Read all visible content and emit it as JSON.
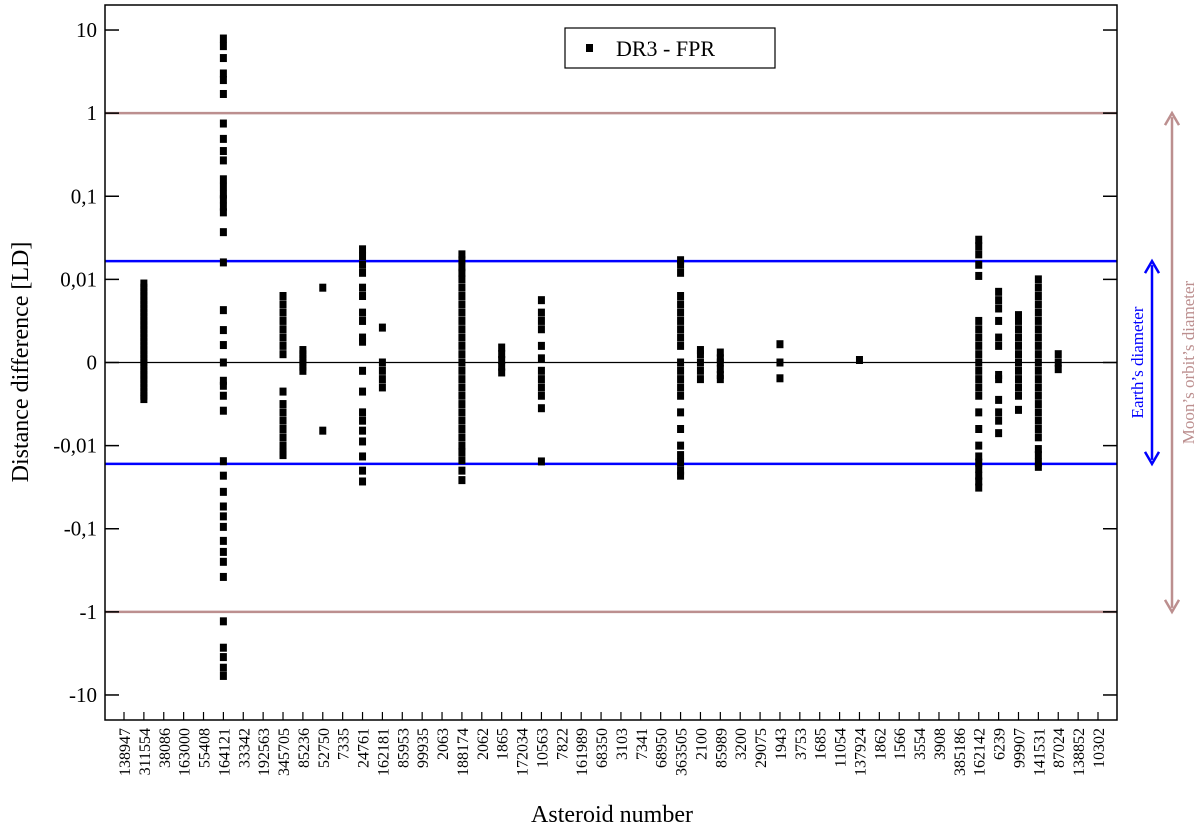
{
  "chart_data": {
    "type": "scatter",
    "xlabel": "Asteroid number",
    "ylabel": "Distance difference  [LD]",
    "yscale": "symlog",
    "linthresh": 0.01,
    "ylim": [
      -20,
      20
    ],
    "yticks": [
      10,
      1,
      {
        "value": 0.1,
        "label": "0,1"
      },
      {
        "value": 0.01,
        "label": "0,01"
      },
      0,
      {
        "value": -0.01,
        "label": "-0,01"
      },
      {
        "value": -0.1,
        "label": "-0,1"
      },
      -1,
      -10
    ],
    "legend": "top",
    "categories": [
      "138947",
      "311554",
      "38086",
      "163000",
      "55408",
      "164121",
      "33342",
      "192563",
      "345705",
      "85236",
      "52750",
      "7335",
      "24761",
      "162181",
      "85953",
      "99935",
      "2063",
      "188174",
      "2062",
      "1865",
      "172034",
      "10563",
      "7822",
      "161989",
      "68350",
      "3103",
      "7341",
      "68950",
      "363505",
      "2100",
      "85989",
      "3200",
      "29075",
      "1943",
      "3753",
      "1685",
      "11054",
      "137924",
      "1862",
      "1566",
      "3554",
      "3908",
      "385186",
      "162142",
      "6239",
      "99907",
      "141531",
      "87024",
      "138852",
      "10302"
    ],
    "series": [
      {
        "name": "DR3 - FPR",
        "color": "#000000",
        "values": [
          [],
          [
            0.0095,
            0.009,
            0.0085,
            0.008,
            0.0075,
            0.007,
            0.0065,
            0.006,
            0.0055,
            0.005,
            0.0045,
            0.004,
            0.0035,
            0.003,
            0.0025,
            0.002,
            0.0015,
            0.001,
            0.0005,
            0,
            -0.0005,
            -0.001,
            -0.0015,
            -0.002,
            -0.0025,
            -0.003,
            -0.0035,
            -0.004,
            -0.0044
          ],
          [],
          [],
          [],
          [
            7.9,
            6.4,
            4.6,
            3.0,
            2.5,
            1.7,
            0.75,
            0.49,
            0.35,
            0.27,
            0.16,
            0.13,
            0.105,
            0.092,
            0.075,
            0.064,
            0.037,
            0.016,
            0.0063,
            0.0039,
            0.0021,
            0,
            -0.0022,
            -0.0028,
            -0.004,
            -0.0058,
            -0.0154,
            -0.023,
            -0.036,
            -0.054,
            -0.071,
            -0.095,
            -0.14,
            -0.19,
            -0.25,
            -0.38,
            -1.3,
            -2.7,
            -3.5,
            -4.7,
            -5.9
          ],
          [],
          [],
          [
            0.008,
            0.007,
            0.006,
            0.005,
            0.004,
            0.003,
            0.002,
            0.001,
            -0.0035,
            -0.005,
            -0.006,
            -0.007,
            -0.008,
            -0.009,
            -0.01,
            -0.012,
            -0.013
          ],
          [
            0.0015,
            0.001,
            0.0005,
            0,
            -0.0005,
            -0.001
          ],
          [
            0.009,
            -0.0082
          ],
          [],
          [
            0.023,
            0.019,
            0.015,
            0.012,
            0.009,
            0.008,
            0.006,
            0.005,
            0.003,
            0.0025,
            -0.001,
            -0.0035,
            -0.006,
            -0.007,
            -0.0082,
            -0.0095,
            -0.0135,
            -0.02,
            -0.027
          ],
          [
            0.0042,
            0,
            -0.001,
            -0.002,
            -0.003
          ],
          [],
          [],
          [],
          [
            0.02,
            0.017,
            0.014,
            0.012,
            0.01,
            0.009,
            0.008,
            0.007,
            0.006,
            0.005,
            0.004,
            0.003,
            0.002,
            0.001,
            0,
            -0.001,
            -0.002,
            -0.003,
            -0.004,
            -0.005,
            -0.006,
            -0.007,
            -0.008,
            -0.009,
            -0.01,
            -0.012,
            -0.015,
            -0.02,
            -0.026
          ],
          [],
          [
            0.0018,
            0.001,
            0.0003,
            -0.0005,
            -0.0012
          ],
          [],
          [
            0.0075,
            0.006,
            0.005,
            0.004,
            0.002,
            0.0005,
            -0.001,
            -0.002,
            -0.003,
            -0.004,
            -0.0055,
            -0.0155
          ],
          [],
          [],
          [],
          [],
          [],
          [],
          [
            0.017,
            0.015,
            0.012,
            0.008,
            0.007,
            0.006,
            0.005,
            0.004,
            0.003,
            0.002,
            0,
            -0.001,
            -0.002,
            -0.003,
            -0.004,
            -0.006,
            -0.008,
            -0.01,
            -0.013,
            -0.016,
            -0.02,
            -0.023
          ],
          [
            0.0015,
            0.001,
            0,
            -0.001,
            -0.002
          ],
          [
            0.0012,
            0.0005,
            0,
            -0.0008,
            -0.0015,
            -0.002
          ],
          [],
          [],
          [
            0.0022,
            0,
            -0.0019
          ],
          [],
          [],
          [],
          [
            0.0003
          ],
          [],
          [],
          [],
          [],
          [],
          [
            0.03,
            0.025,
            0.02,
            0.015,
            0.011,
            0.005,
            0.004,
            0.003,
            0.002,
            0.001,
            0,
            -0.001,
            -0.002,
            -0.003,
            -0.004,
            -0.006,
            -0.008,
            -0.01,
            -0.0135,
            -0.016,
            -0.019,
            -0.023,
            -0.027,
            -0.032
          ],
          [
            0.0085,
            0.0075,
            0.0065,
            0.005,
            0.003,
            0.002,
            -0.0015,
            -0.002,
            -0.0045,
            -0.006,
            -0.007,
            -0.0085
          ],
          [
            0.0057,
            0.005,
            0.004,
            0.003,
            0.002,
            0.001,
            0,
            -0.001,
            -0.002,
            -0.003,
            -0.004,
            -0.0057
          ],
          [
            0.01,
            0.009,
            0.008,
            0.007,
            0.006,
            0.005,
            0.004,
            0.003,
            0.002,
            0.001,
            0,
            -0.001,
            -0.002,
            -0.003,
            -0.004,
            -0.005,
            -0.006,
            -0.007,
            -0.008,
            -0.009,
            -0.011,
            -0.013,
            -0.016,
            -0.018
          ],
          [
            0.001,
            0,
            -0.0008
          ],
          [],
          []
        ]
      }
    ],
    "reference_lines": [
      {
        "value": 1,
        "color": "#bc8f8f"
      },
      {
        "value": -1,
        "color": "#bc8f8f"
      },
      {
        "value": 0.0166,
        "color": "#0000ff"
      },
      {
        "value": -0.0166,
        "color": "#0000ff"
      },
      {
        "value": 0,
        "color": "#000000"
      }
    ],
    "annotations": [
      {
        "text": "Earth’s diameter",
        "color": "#0000ff"
      },
      {
        "text": "Moon’s orbit’s diameter",
        "color": "#bc8f8f"
      }
    ]
  }
}
